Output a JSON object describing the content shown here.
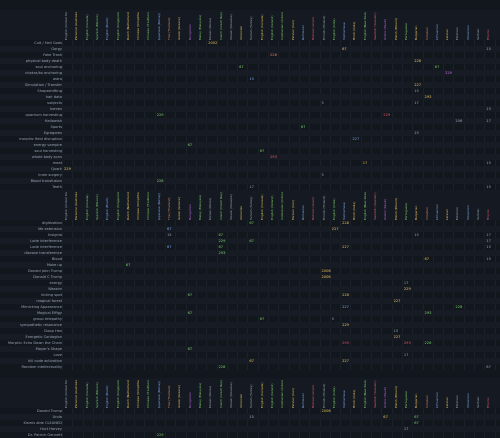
{
  "columns": [
    {
      "label": "English (United States)",
      "color": "#9aa4b2"
    },
    {
      "label": "Personal (Australia)",
      "color": "#e6c15a"
    },
    {
      "label": "English (Canada)",
      "color": "#7dcf6a"
    },
    {
      "label": "Spanish (Mexico)",
      "color": "#7dcf6a"
    },
    {
      "label": "English (Brazil)",
      "color": "#7aa9e8"
    },
    {
      "label": "English (Singapore)",
      "color": "#7dcf6a"
    },
    {
      "label": "Dutch (Netherlands)",
      "color": "#e6c15a"
    },
    {
      "label": "Chinese (Simplified)",
      "color": "#e6c15a"
    },
    {
      "label": "Chinese (Traditional)",
      "color": "#7dcf6a"
    },
    {
      "label": "Japanese (Romaji)",
      "color": "#7aa9e8"
    },
    {
      "label": "Thai (Thailand)",
      "color": "#e08a5a"
    },
    {
      "label": "Greek (Greece)",
      "color": "#e6c15a"
    },
    {
      "label": "Hungarian",
      "color": "#c06ae0"
    },
    {
      "label": "Malay (Malaysia)",
      "color": "#7dcf6a"
    },
    {
      "label": "Korean (Korea)",
      "color": "#9aa4b2"
    },
    {
      "label": "Czech (Czech Rep)",
      "color": "#7dcf6a"
    },
    {
      "label": "Slovak (Slovakia)",
      "color": "#9aa4b2"
    },
    {
      "label": "Ukrainian",
      "color": "#e6c15a"
    },
    {
      "label": "Turkish (Turkey)",
      "color": "#9aa4b2"
    },
    {
      "label": "English (Canada)",
      "color": "#e6c15a"
    },
    {
      "label": "English (Ireland)",
      "color": "#7dcf6a"
    },
    {
      "label": "Indonesian (Indonesia)",
      "color": "#7dcf6a"
    },
    {
      "label": "Persian (Iran)",
      "color": "#e6c15a"
    },
    {
      "label": "Romanian",
      "color": "#7aa9e8"
    },
    {
      "label": "Hebrew (Israel)",
      "color": "#e05a6a"
    },
    {
      "label": "Finnish (Finland)",
      "color": "#9aa4b2"
    },
    {
      "label": "English (India)",
      "color": "#7dcf6a"
    },
    {
      "label": "Vietnamese",
      "color": "#7aa9e8"
    },
    {
      "label": "Hindi (India)",
      "color": "#e6c15a"
    },
    {
      "label": "English (New Zealand)",
      "color": "#7dcf6a"
    },
    {
      "label": "Swedish (Sweden)",
      "color": "#e05a6a"
    },
    {
      "label": "Arabic (Saudi)",
      "color": "#c06ae0"
    },
    {
      "label": "Polish (Poland)",
      "color": "#e6c15a"
    },
    {
      "label": "Portuguese",
      "color": "#7dcf6a"
    },
    {
      "label": "Bulgarian",
      "color": "#e6c15a"
    },
    {
      "label": "Croatian",
      "color": "#e08a5a"
    },
    {
      "label": "Lithuanian",
      "color": "#7aa9e8"
    },
    {
      "label": "Latvian",
      "color": "#e6c15a"
    },
    {
      "label": "Estonian",
      "color": "#9aa4b2"
    },
    {
      "label": "Slovenian",
      "color": "#7aa9e8"
    },
    {
      "label": "Serbian",
      "color": "#9aa4b2"
    },
    {
      "label": "Filipino",
      "color": "#e05a6a"
    }
  ],
  "sections": [
    {
      "rows": [
        {
          "label": "Cult / Hail Gods",
          "cells": [
            {
              "col": 14,
              "text": "2002",
              "color": "#e6c15a"
            }
          ]
        },
        {
          "label": "Gorgy",
          "cells": [
            {
              "col": 27,
              "text": "67",
              "color": "#e6c15a"
            },
            {
              "col": 41,
              "text": "15",
              "color": "#9aa4b2"
            }
          ]
        },
        {
          "label": "Fake Trash",
          "cells": [
            {
              "col": 20,
              "text": "228",
              "color": "#e08a5a"
            }
          ]
        },
        {
          "label": "physical body death",
          "cells": [
            {
              "col": 34,
              "text": "226",
              "color": "#e6c15a"
            }
          ]
        },
        {
          "label": "soul anchoring",
          "cells": [
            {
              "col": 17,
              "text": "67",
              "color": "#7dcf6a"
            },
            {
              "col": 36,
              "text": "67",
              "color": "#7dcf6a"
            }
          ]
        },
        {
          "label": "chakra/ko anchoring",
          "cells": [
            {
              "col": 37,
              "text": "229",
              "color": "#c06ae0"
            }
          ]
        },
        {
          "label": "astra",
          "cells": [
            {
              "col": 18,
              "text": "15",
              "color": "#7aa9e8"
            }
          ]
        },
        {
          "label": "Simulation / Transfer",
          "cells": [
            {
              "col": 34,
              "text": "227",
              "color": "#e6c15a"
            }
          ]
        },
        {
          "label": "Shapeshifting",
          "cells": [
            {
              "col": 34,
              "text": "15",
              "color": "#9aa4b2"
            }
          ]
        },
        {
          "label": "hair data",
          "cells": [
            {
              "col": 35,
              "text": "293",
              "color": "#e6c15a"
            }
          ]
        },
        {
          "label": "subjects",
          "cells": [
            {
              "col": 25,
              "text": "5",
              "color": "#9aa4b2"
            },
            {
              "col": 34,
              "text": "17",
              "color": "#9aa4b2"
            }
          ]
        },
        {
          "label": "homes",
          "cells": [
            {
              "col": 41,
              "text": "15",
              "color": "#9aa4b2"
            }
          ]
        },
        {
          "label": "quantum harvesting",
          "cells": [
            {
              "col": 9,
              "text": "229",
              "color": "#7dcf6a"
            },
            {
              "col": 31,
              "text": "229",
              "color": "#e05a6a"
            }
          ]
        },
        {
          "label": "Hallowish",
          "cells": [
            {
              "col": 38,
              "text": "206",
              "color": "#9aa4b2"
            },
            {
              "col": 41,
              "text": "17",
              "color": "#9aa4b2"
            }
          ]
        },
        {
          "label": "Sports",
          "cells": [
            {
              "col": 23,
              "text": "67",
              "color": "#7dcf6a"
            }
          ]
        },
        {
          "label": "Egregores",
          "cells": [
            {
              "col": 34,
              "text": "15",
              "color": "#9aa4b2"
            }
          ]
        },
        {
          "label": "morphic field disruption",
          "cells": [
            {
              "col": 28,
              "text": "227",
              "color": "#7aa9e8"
            }
          ]
        },
        {
          "label": "energy vampire",
          "cells": [
            {
              "col": 12,
              "text": "67",
              "color": "#7dcf6a"
            }
          ]
        },
        {
          "label": "soul harvesting",
          "cells": [
            {
              "col": 19,
              "text": "67",
              "color": "#7dcf6a"
            }
          ]
        },
        {
          "label": "whole body scan",
          "cells": [
            {
              "col": 20,
              "text": "293",
              "color": "#e05a6a"
            }
          ]
        },
        {
          "label": "meat",
          "cells": [
            {
              "col": 29,
              "text": "17",
              "color": "#e6c15a"
            },
            {
              "col": 41,
              "text": "15",
              "color": "#9aa4b2"
            }
          ]
        },
        {
          "label": "Quark",
          "cells": [
            {
              "col": 0,
              "text": "229",
              "color": "#e6c15a"
            }
          ]
        },
        {
          "label": "knee surgery",
          "cells": [
            {
              "col": 25,
              "text": "5",
              "color": "#9aa4b2"
            }
          ]
        },
        {
          "label": "Blood transfusion",
          "cells": [
            {
              "col": 9,
              "text": "228",
              "color": "#7dcf6a"
            }
          ]
        },
        {
          "label": "Teeth",
          "cells": [
            {
              "col": 18,
              "text": "17",
              "color": "#9aa4b2"
            },
            {
              "col": 41,
              "text": "15",
              "color": "#9aa4b2"
            }
          ]
        }
      ]
    },
    {
      "rows": [
        {
          "label": "digitization",
          "cells": [
            {
              "col": 18,
              "text": "67",
              "color": "#7dcf6a"
            },
            {
              "col": 27,
              "text": "228",
              "color": "#e6c15a"
            }
          ]
        },
        {
          "label": "life extension",
          "cells": [
            {
              "col": 10,
              "text": "67",
              "color": "#7aa9e8"
            },
            {
              "col": 26,
              "text": "227",
              "color": "#e6c15a"
            }
          ]
        },
        {
          "label": "Insignia",
          "cells": [
            {
              "col": 10,
              "text": "15",
              "color": "#9aa4b2"
            },
            {
              "col": 15,
              "text": "67",
              "color": "#7dcf6a"
            },
            {
              "col": 34,
              "text": "15",
              "color": "#9aa4b2"
            },
            {
              "col": 41,
              "text": "17",
              "color": "#9aa4b2"
            }
          ]
        },
        {
          "label": "Lode interference",
          "cells": [
            {
              "col": 15,
              "text": "229",
              "color": "#7dcf6a"
            },
            {
              "col": 18,
              "text": "67",
              "color": "#7dcf6a"
            },
            {
              "col": 41,
              "text": "17",
              "color": "#9aa4b2"
            }
          ]
        },
        {
          "label": "Lode interference",
          "cells": [
            {
              "col": 10,
              "text": "67",
              "color": "#7aa9e8"
            },
            {
              "col": 15,
              "text": "67",
              "color": "#7dcf6a"
            },
            {
              "col": 27,
              "text": "227",
              "color": "#e6c15a"
            },
            {
              "col": 41,
              "text": "15",
              "color": "#9aa4b2"
            }
          ]
        },
        {
          "label": "disease transference",
          "cells": [
            {
              "col": 15,
              "text": "293",
              "color": "#7dcf6a"
            }
          ]
        },
        {
          "label": "Blood",
          "cells": [
            {
              "col": 35,
              "text": "67",
              "color": "#e6c15a"
            },
            {
              "col": 41,
              "text": "15",
              "color": "#9aa4b2"
            }
          ]
        },
        {
          "label": "Make up",
          "cells": [
            {
              "col": 6,
              "text": "67",
              "color": "#7dcf6a"
            }
          ]
        },
        {
          "label": "Donald John Trump",
          "cells": [
            {
              "col": 25,
              "text": "2006",
              "color": "#e6c15a"
            }
          ]
        },
        {
          "label": "Donald C Trump",
          "cells": [
            {
              "col": 25,
              "text": "2006",
              "color": "#e6c15a"
            }
          ]
        },
        {
          "label": "energy",
          "cells": [
            {
              "col": 33,
              "text": "17",
              "color": "#9aa4b2"
            }
          ]
        },
        {
          "label": "Wassim",
          "cells": [
            {
              "col": 33,
              "text": "229",
              "color": "#e6c15a"
            }
          ]
        },
        {
          "label": "linking spot",
          "cells": [
            {
              "col": 12,
              "text": "67",
              "color": "#7dcf6a"
            },
            {
              "col": 27,
              "text": "228",
              "color": "#e6c15a"
            }
          ]
        },
        {
          "label": "magical forest",
          "cells": [
            {
              "col": 32,
              "text": "227",
              "color": "#e6c15a"
            }
          ]
        },
        {
          "label": "Mimicking Appearance",
          "cells": [
            {
              "col": 27,
              "text": "227",
              "color": "#7aa9e8"
            },
            {
              "col": 38,
              "text": "228",
              "color": "#7dcf6a"
            }
          ]
        },
        {
          "label": "Magical Effigy",
          "cells": [
            {
              "col": 12,
              "text": "67",
              "color": "#7dcf6a"
            },
            {
              "col": 35,
              "text": "293",
              "color": "#7dcf6a"
            }
          ]
        },
        {
          "label": "group telepathy",
          "cells": [
            {
              "col": 19,
              "text": "67",
              "color": "#7dcf6a"
            },
            {
              "col": 26,
              "text": "5",
              "color": "#9aa4b2"
            }
          ]
        },
        {
          "label": "sympathetic resonance",
          "cells": [
            {
              "col": 27,
              "text": "229",
              "color": "#e6c15a"
            }
          ]
        },
        {
          "label": "Cloop Hex",
          "cells": [
            {
              "col": 32,
              "text": "15",
              "color": "#9aa4b2"
            }
          ]
        },
        {
          "label": "Energetic Contagion",
          "cells": [
            {
              "col": 32,
              "text": "227",
              "color": "#e6c15a"
            }
          ]
        },
        {
          "label": "Morphic Echo Down the Chain",
          "cells": [
            {
              "col": 27,
              "text": "293",
              "color": "#e05a6a"
            },
            {
              "col": 33,
              "text": "293",
              "color": "#e05a6a"
            },
            {
              "col": 35,
              "text": "226",
              "color": "#7dcf6a"
            }
          ]
        },
        {
          "label": "Mayor's Shape",
          "cells": [
            {
              "col": 12,
              "text": "67",
              "color": "#7dcf6a"
            }
          ]
        },
        {
          "label": "Love",
          "cells": [
            {
              "col": 33,
              "text": "17",
              "color": "#9aa4b2"
            }
          ]
        },
        {
          "label": "kill code activation",
          "cells": [
            {
              "col": 18,
              "text": "67",
              "color": "#e6c15a"
            },
            {
              "col": 27,
              "text": "227",
              "color": "#e6c15a"
            }
          ]
        },
        {
          "label": "Random intellectuality",
          "cells": [
            {
              "col": 15,
              "text": "228",
              "color": "#7dcf6a"
            },
            {
              "col": 41,
              "text": "67",
              "color": "#9aa4b2"
            }
          ]
        }
      ]
    },
    {
      "rows": [
        {
          "label": "Donald Trump",
          "cells": [
            {
              "col": 25,
              "text": "2006",
              "color": "#e6c15a"
            }
          ]
        },
        {
          "label": "Unda",
          "cells": [
            {
              "col": 18,
              "text": "15",
              "color": "#9aa4b2"
            },
            {
              "col": 31,
              "text": "67",
              "color": "#e6c15a"
            },
            {
              "col": 34,
              "text": "67",
              "color": "#7dcf6a"
            }
          ]
        },
        {
          "label": "Kismis alde CLEANED",
          "cells": [
            {
              "col": 34,
              "text": "67",
              "color": "#7dcf6a"
            }
          ]
        },
        {
          "label": "Hurt Harvey",
          "cells": [
            {
              "col": 33,
              "text": "17",
              "color": "#9aa4b2"
            }
          ]
        },
        {
          "label": "Dr. Patrick Gennett",
          "cells": [
            {
              "col": 9,
              "text": "229",
              "color": "#7dcf6a"
            }
          ]
        }
      ]
    }
  ]
}
